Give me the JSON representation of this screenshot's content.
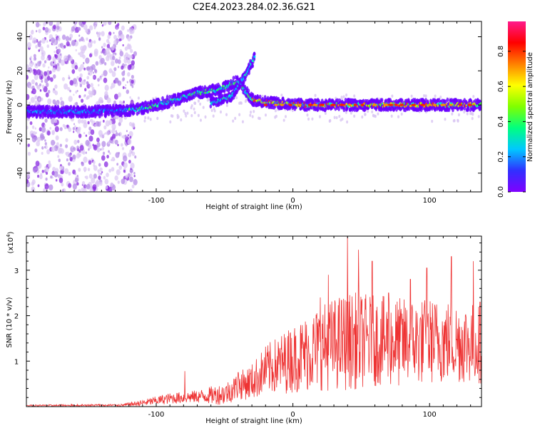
{
  "figure_title": "C2E4.2023.284.02.36.G21",
  "chart_data": [
    {
      "type": "heatmap",
      "title": "C2E4.2023.284.02.36.G21",
      "xlabel": "Height of straight line (km)",
      "ylabel": "Frequency (Hz)",
      "xlim": [
        -195,
        138
      ],
      "ylim": [
        -51,
        49
      ],
      "xticks": [
        -100,
        0,
        100
      ],
      "xtick_labels": [
        "-100",
        "0",
        "100"
      ],
      "yticks": [
        -40,
        -20,
        0,
        20,
        40
      ],
      "ytick_labels": [
        "-40",
        "-20",
        "0",
        "20",
        "40"
      ],
      "colorbar": {
        "label": "Normalized spectral amplitude",
        "range": [
          0,
          0.97
        ],
        "ticks": [
          0.0,
          0.2,
          0.4,
          0.6,
          0.8
        ],
        "tick_labels": [
          "0.0",
          "0.2",
          "0.4",
          "0.6",
          "0.8"
        ],
        "colormap": "rainbow",
        "colors": [
          "#ffffff",
          "#c8a8f0",
          "#8000ff",
          "#3030ff",
          "#00c8ff",
          "#00ff80",
          "#80ff00",
          "#ffff00",
          "#ff8000",
          "#ff0000",
          "#ff1a8c"
        ]
      },
      "ridge": [
        {
          "x": -195,
          "y": -4
        },
        {
          "x": -150,
          "y": -4
        },
        {
          "x": -120,
          "y": -3
        },
        {
          "x": -110,
          "y": -2
        },
        {
          "x": -90,
          "y": 2
        },
        {
          "x": -70,
          "y": 7
        },
        {
          "x": -55,
          "y": 9
        },
        {
          "x": -40,
          "y": 14
        },
        {
          "x": -30,
          "y": 3
        },
        {
          "x": -10,
          "y": 1
        },
        {
          "x": 10,
          "y": 0
        },
        {
          "x": 138,
          "y": 0
        }
      ],
      "branch": [
        {
          "x": -60,
          "y": 1
        },
        {
          "x": -45,
          "y": 5
        },
        {
          "x": -35,
          "y": 17
        },
        {
          "x": -28,
          "y": 28
        }
      ]
    },
    {
      "type": "line",
      "xlabel": "Height of straight line (km)",
      "ylabel": "SNR (10 * v/v)",
      "y_multiplier": "(x10^4)",
      "y_multiplier_base": "(x10",
      "y_multiplier_exp": "4",
      "y_multiplier_close": ")",
      "xlim": [
        -195,
        138
      ],
      "ylim": [
        0,
        3.75
      ],
      "xticks": [
        -100,
        0,
        100
      ],
      "xtick_labels": [
        "-100",
        "0",
        "100"
      ],
      "yticks": [
        1,
        2,
        3
      ],
      "ytick_labels": [
        "1",
        "2",
        "3"
      ],
      "color": "#ee3333",
      "envelope": [
        {
          "x": -195,
          "mean": 0.02,
          "amp": 0.02
        },
        {
          "x": -125,
          "mean": 0.03,
          "amp": 0.03
        },
        {
          "x": -110,
          "mean": 0.08,
          "amp": 0.07
        },
        {
          "x": -90,
          "mean": 0.18,
          "amp": 0.12
        },
        {
          "x": -70,
          "mean": 0.22,
          "amp": 0.14
        },
        {
          "x": -50,
          "mean": 0.28,
          "amp": 0.25
        },
        {
          "x": -40,
          "mean": 0.45,
          "amp": 0.3
        },
        {
          "x": -30,
          "mean": 0.55,
          "amp": 0.4
        },
        {
          "x": -20,
          "mean": 0.8,
          "amp": 0.55
        },
        {
          "x": 0,
          "mean": 1.05,
          "amp": 0.75
        },
        {
          "x": 20,
          "mean": 1.3,
          "amp": 0.95
        },
        {
          "x": 40,
          "mean": 1.45,
          "amp": 1.1
        },
        {
          "x": 60,
          "mean": 1.45,
          "amp": 1.0
        },
        {
          "x": 80,
          "mean": 1.4,
          "amp": 1.0
        },
        {
          "x": 100,
          "mean": 1.45,
          "amp": 0.95
        },
        {
          "x": 138,
          "mean": 1.4,
          "amp": 0.9
        }
      ],
      "peaks": [
        {
          "x": -79,
          "y": 0.78
        },
        {
          "x": -40,
          "y": 0.75
        },
        {
          "x": -2,
          "y": 1.6
        },
        {
          "x": 10,
          "y": 1.8
        },
        {
          "x": 20,
          "y": 2.4
        },
        {
          "x": 26,
          "y": 2.9
        },
        {
          "x": 40,
          "y": 3.75
        },
        {
          "x": 48,
          "y": 3.45
        },
        {
          "x": 58,
          "y": 3.2
        },
        {
          "x": 70,
          "y": 2.5
        },
        {
          "x": 86,
          "y": 2.8
        },
        {
          "x": 98,
          "y": 3.05
        },
        {
          "x": 116,
          "y": 3.3
        },
        {
          "x": 132,
          "y": 3.2
        },
        {
          "x": 137,
          "y": 2.3
        }
      ]
    }
  ]
}
